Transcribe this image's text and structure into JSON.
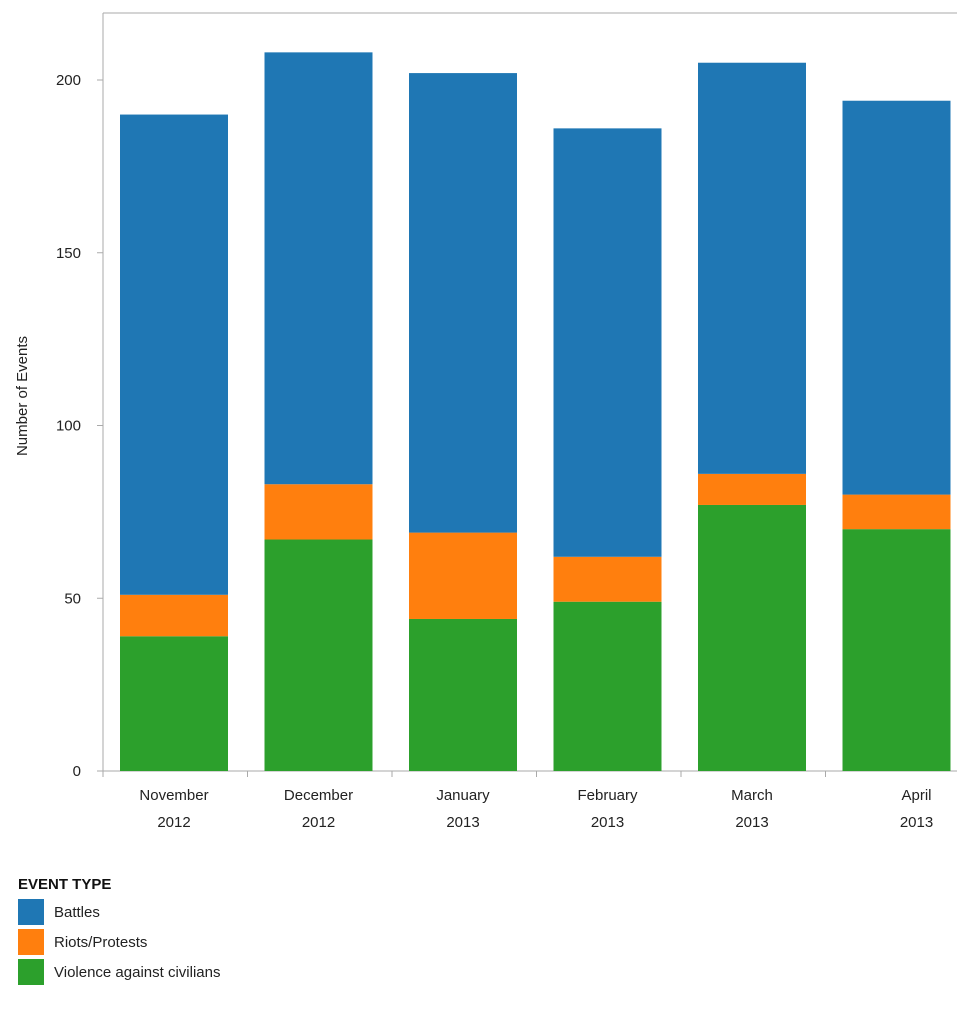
{
  "chart_data": {
    "type": "bar",
    "stacked": true,
    "categories": [
      [
        "November",
        "2012"
      ],
      [
        "December",
        "2012"
      ],
      [
        "January",
        "2013"
      ],
      [
        "February",
        "2013"
      ],
      [
        "March",
        "2013"
      ],
      [
        "April",
        "2013"
      ]
    ],
    "series": [
      {
        "name": "Violence against civilians",
        "color": "#2ca02c",
        "values": [
          39,
          67,
          44,
          49,
          77,
          70
        ]
      },
      {
        "name": "Riots/Protests",
        "color": "#ff7f0e",
        "values": [
          12,
          16,
          25,
          13,
          9,
          10
        ]
      },
      {
        "name": "Battles",
        "color": "#1f77b4",
        "values": [
          139,
          125,
          133,
          124,
          119,
          114
        ]
      }
    ],
    "ylabel": "Number of Events",
    "xlabel": "",
    "ylim": [
      0,
      220
    ],
    "yticks": [
      0,
      50,
      100,
      150,
      200
    ],
    "grid": false,
    "legend": {
      "title": "EVENT TYPE",
      "placement": "bottom-left",
      "items": [
        "Battles",
        "Riots/Protests",
        "Violence against civilians"
      ]
    }
  }
}
